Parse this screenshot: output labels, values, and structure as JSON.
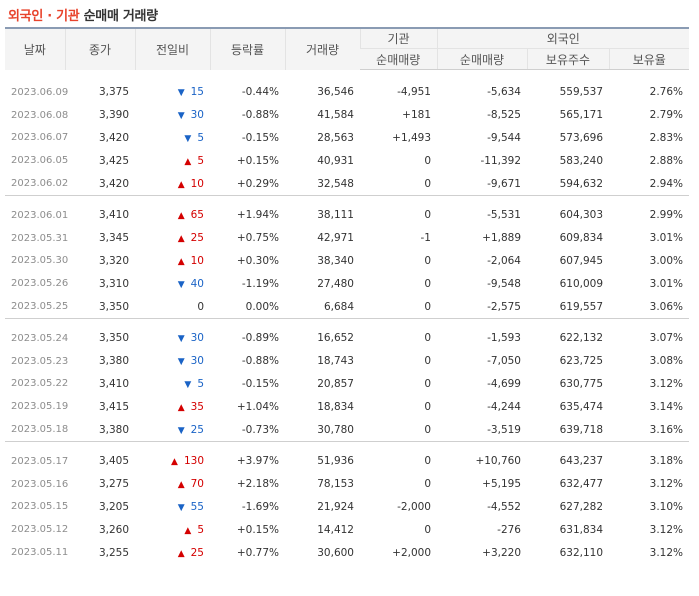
{
  "title": {
    "part1": "외국인 · 기관",
    "part2": "순매매 거래량"
  },
  "headers": {
    "date": "날짜",
    "close": "종가",
    "change": "전일비",
    "rate": "등락률",
    "volume": "거래량",
    "inst": "기관",
    "foreign": "외국인",
    "inst_net": "순매매량",
    "foreign_net": "순매매량",
    "holdings": "보유주수",
    "ratio": "보유율"
  },
  "groups": [
    {
      "rows": [
        {
          "date": "2023.06.09",
          "close": "3,375",
          "dir": "down",
          "change": "15",
          "rate": "-0.44%",
          "volume": "36,546",
          "inst": "-4,951",
          "foreign": "-5,634",
          "holdings": "559,537",
          "ratio": "2.76%"
        },
        {
          "date": "2023.06.08",
          "close": "3,390",
          "dir": "down",
          "change": "30",
          "rate": "-0.88%",
          "volume": "41,584",
          "inst": "+181",
          "foreign": "-8,525",
          "holdings": "565,171",
          "ratio": "2.79%"
        },
        {
          "date": "2023.06.07",
          "close": "3,420",
          "dir": "down",
          "change": "5",
          "rate": "-0.15%",
          "volume": "28,563",
          "inst": "+1,493",
          "foreign": "-9,544",
          "holdings": "573,696",
          "ratio": "2.83%"
        },
        {
          "date": "2023.06.05",
          "close": "3,425",
          "dir": "up",
          "change": "5",
          "rate": "+0.15%",
          "volume": "40,931",
          "inst": "0",
          "foreign": "-11,392",
          "holdings": "583,240",
          "ratio": "2.88%"
        },
        {
          "date": "2023.06.02",
          "close": "3,420",
          "dir": "up",
          "change": "10",
          "rate": "+0.29%",
          "volume": "32,548",
          "inst": "0",
          "foreign": "-9,671",
          "holdings": "594,632",
          "ratio": "2.94%"
        }
      ]
    },
    {
      "rows": [
        {
          "date": "2023.06.01",
          "close": "3,410",
          "dir": "up",
          "change": "65",
          "rate": "+1.94%",
          "volume": "38,111",
          "inst": "0",
          "foreign": "-5,531",
          "holdings": "604,303",
          "ratio": "2.99%"
        },
        {
          "date": "2023.05.31",
          "close": "3,345",
          "dir": "up",
          "change": "25",
          "rate": "+0.75%",
          "volume": "42,971",
          "inst": "-1",
          "foreign": "+1,889",
          "holdings": "609,834",
          "ratio": "3.01%"
        },
        {
          "date": "2023.05.30",
          "close": "3,320",
          "dir": "up",
          "change": "10",
          "rate": "+0.30%",
          "volume": "38,340",
          "inst": "0",
          "foreign": "-2,064",
          "holdings": "607,945",
          "ratio": "3.00%"
        },
        {
          "date": "2023.05.26",
          "close": "3,310",
          "dir": "down",
          "change": "40",
          "rate": "-1.19%",
          "volume": "27,480",
          "inst": "0",
          "foreign": "-9,548",
          "holdings": "610,009",
          "ratio": "3.01%"
        },
        {
          "date": "2023.05.25",
          "close": "3,350",
          "dir": "none",
          "change": "0",
          "rate": "0.00%",
          "volume": "6,684",
          "inst": "0",
          "foreign": "-2,575",
          "holdings": "619,557",
          "ratio": "3.06%"
        }
      ]
    },
    {
      "rows": [
        {
          "date": "2023.05.24",
          "close": "3,350",
          "dir": "down",
          "change": "30",
          "rate": "-0.89%",
          "volume": "16,652",
          "inst": "0",
          "foreign": "-1,593",
          "holdings": "622,132",
          "ratio": "3.07%"
        },
        {
          "date": "2023.05.23",
          "close": "3,380",
          "dir": "down",
          "change": "30",
          "rate": "-0.88%",
          "volume": "18,743",
          "inst": "0",
          "foreign": "-7,050",
          "holdings": "623,725",
          "ratio": "3.08%"
        },
        {
          "date": "2023.05.22",
          "close": "3,410",
          "dir": "down",
          "change": "5",
          "rate": "-0.15%",
          "volume": "20,857",
          "inst": "0",
          "foreign": "-4,699",
          "holdings": "630,775",
          "ratio": "3.12%"
        },
        {
          "date": "2023.05.19",
          "close": "3,415",
          "dir": "up",
          "change": "35",
          "rate": "+1.04%",
          "volume": "18,834",
          "inst": "0",
          "foreign": "-4,244",
          "holdings": "635,474",
          "ratio": "3.14%"
        },
        {
          "date": "2023.05.18",
          "close": "3,380",
          "dir": "down",
          "change": "25",
          "rate": "-0.73%",
          "volume": "30,780",
          "inst": "0",
          "foreign": "-3,519",
          "holdings": "639,718",
          "ratio": "3.16%"
        }
      ]
    },
    {
      "rows": [
        {
          "date": "2023.05.17",
          "close": "3,405",
          "dir": "up",
          "change": "130",
          "rate": "+3.97%",
          "volume": "51,936",
          "inst": "0",
          "foreign": "+10,760",
          "holdings": "643,237",
          "ratio": "3.18%"
        },
        {
          "date": "2023.05.16",
          "close": "3,275",
          "dir": "up",
          "change": "70",
          "rate": "+2.18%",
          "volume": "78,153",
          "inst": "0",
          "foreign": "+5,195",
          "holdings": "632,477",
          "ratio": "3.12%"
        },
        {
          "date": "2023.05.15",
          "close": "3,205",
          "dir": "down",
          "change": "55",
          "rate": "-1.69%",
          "volume": "21,924",
          "inst": "-2,000",
          "foreign": "-4,552",
          "holdings": "627,282",
          "ratio": "3.10%"
        },
        {
          "date": "2023.05.12",
          "close": "3,260",
          "dir": "up",
          "change": "5",
          "rate": "+0.15%",
          "volume": "14,412",
          "inst": "0",
          "foreign": "-276",
          "holdings": "631,834",
          "ratio": "3.12%"
        },
        {
          "date": "2023.05.11",
          "close": "3,255",
          "dir": "up",
          "change": "25",
          "rate": "+0.77%",
          "volume": "30,600",
          "inst": "+2,000",
          "foreign": "+3,220",
          "holdings": "632,110",
          "ratio": "3.12%"
        }
      ]
    }
  ],
  "icons": {
    "up": "triangle-up-icon",
    "down": "triangle-down-icon"
  },
  "colors": {
    "up": "#d40000",
    "down": "#1a63c6",
    "title_accent": "#e8432c"
  }
}
